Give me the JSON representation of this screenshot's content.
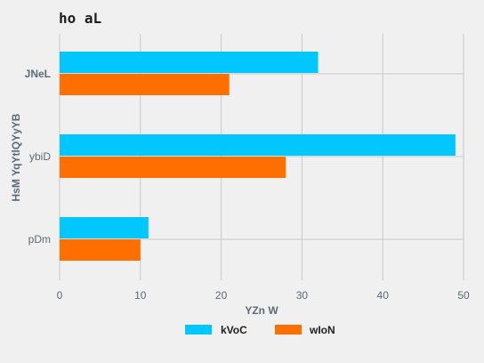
{
  "chart_data": {
    "type": "bar",
    "orientation": "horizontal",
    "title": "ho  aL",
    "xlabel": "YZn W",
    "ylabel": "HsM YqYtlQYyYB",
    "categories": [
      "JNeL",
      "ybiD",
      "pDm"
    ],
    "series": [
      {
        "name": "kVoC",
        "values": [
          32,
          49,
          11
        ],
        "color": "#00c8ff"
      },
      {
        "name": "wIoN",
        "values": [
          21,
          28,
          10
        ],
        "color": "#ff6f00"
      }
    ],
    "xlim": [
      0,
      50
    ],
    "xticks": [
      0,
      10,
      20,
      30,
      40,
      50
    ],
    "grid": true,
    "legend_position": "bottom-center",
    "colors": {
      "background": "#f0f0f0",
      "grid": "#c8c8c8",
      "text": "#5b6b77",
      "title": "#1e1e1e"
    }
  }
}
